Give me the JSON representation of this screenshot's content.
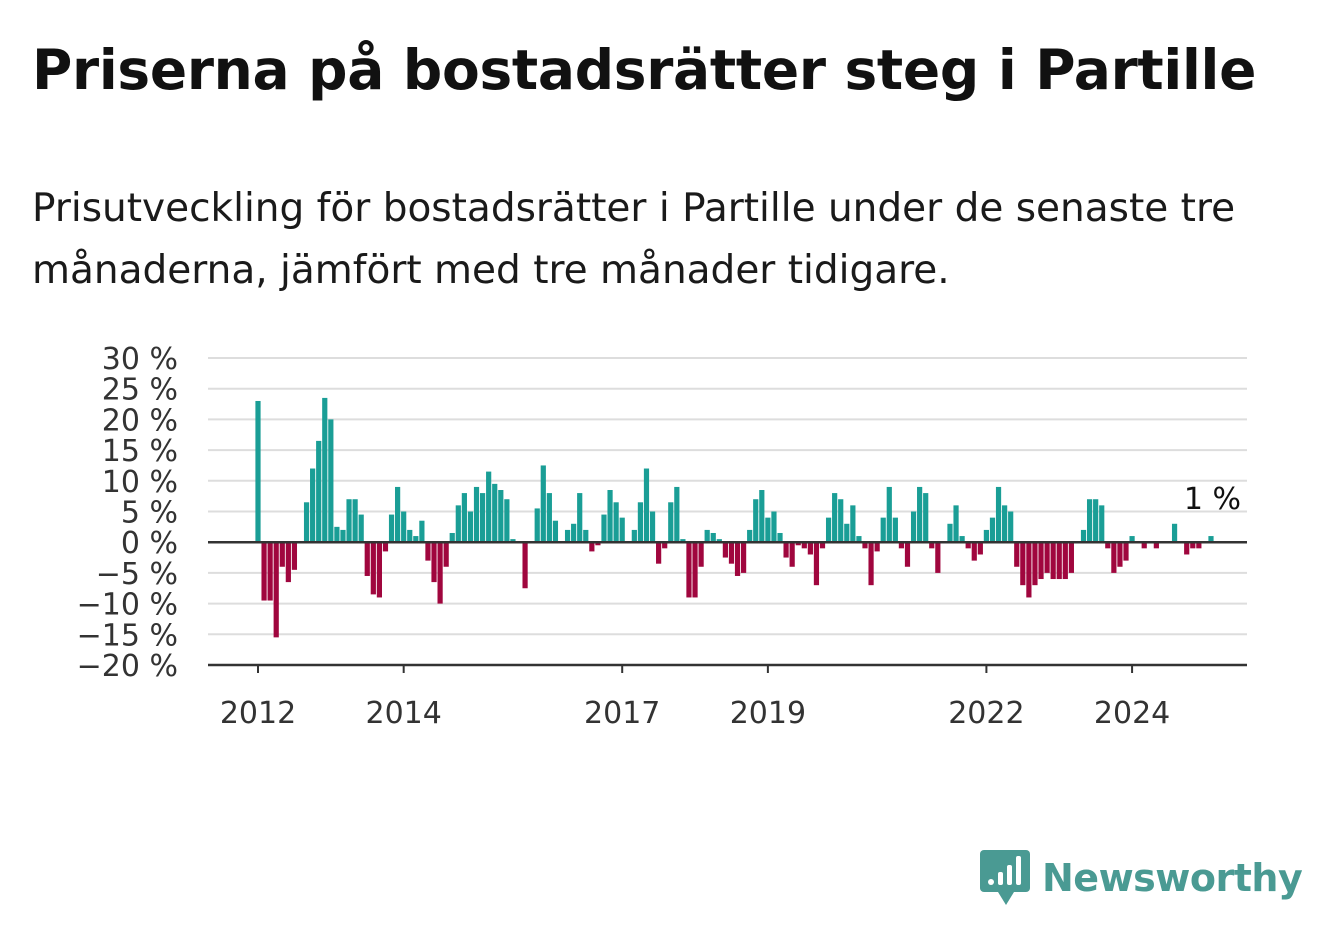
{
  "title": "Priserna på bostadsrätter steg i Partille",
  "subtitle": "Prisutveckling för bostadsrätter i Partille under de senaste tre månaderna, jämfört med tre månader tidigare.",
  "brand": {
    "name": "Newsworthy",
    "icon": "newsworthy-logo-icon",
    "color": "#4a9a93"
  },
  "chart_data": {
    "type": "bar",
    "ylim": [
      -20,
      30
    ],
    "y_ticks": [
      30,
      25,
      20,
      15,
      10,
      5,
      0,
      -5,
      -10,
      -15,
      -20
    ],
    "y_tick_labels": [
      "30 %",
      "25 %",
      "20 %",
      "15 %",
      "10 %",
      "5 %",
      "0 %",
      "−5 %",
      "−10 %",
      "−15 %",
      "−20 %"
    ],
    "x_tick_labels": [
      "2012",
      "2014",
      "2017",
      "2019",
      "2022",
      "2024"
    ],
    "x_tick_months": [
      0,
      24,
      60,
      84,
      120,
      144
    ],
    "colors": {
      "positive": "#1a9e96",
      "negative": "#a0063e",
      "grid": "#dddddd",
      "axis": "#333333"
    },
    "annotation": "1 %",
    "series": [
      {
        "values": [
          23,
          -9.5,
          -9.5,
          -15.5,
          -4,
          -6.5,
          -4.5,
          0,
          6.5,
          12,
          16.5,
          23.5,
          20,
          2.5,
          2,
          7,
          7,
          4.5,
          -5.5,
          -8.5,
          -9,
          -1.5,
          4.5,
          9,
          5,
          2,
          1,
          3.5,
          -3,
          -6.5,
          -10,
          -4,
          1.5,
          6,
          8,
          5,
          9,
          8,
          11.5,
          9.5,
          8.5,
          7,
          0.5,
          0,
          -7.5,
          0,
          5.5,
          12.5,
          8,
          3.5,
          0,
          2,
          3,
          8,
          2,
          -1.5,
          -0.5,
          4.5,
          8.5,
          6.5,
          4,
          0,
          2,
          6.5,
          12,
          5,
          -3.5,
          -1,
          6.5,
          9,
          0.5,
          -9,
          -9,
          -4,
          2,
          1.5,
          0.5,
          -2.5,
          -3.5,
          -5.5,
          -5,
          2,
          7,
          8.5,
          4,
          5,
          1.5,
          -2.5,
          -4,
          -0.5,
          -1,
          -2,
          -7,
          -1,
          4,
          8,
          7,
          3,
          6,
          1,
          -1,
          -7,
          -1.5,
          4,
          9,
          4,
          -1,
          -4,
          5,
          9,
          8,
          -1,
          -5,
          0,
          3,
          6,
          1,
          -1,
          -3,
          -2,
          2,
          4,
          9,
          6,
          5,
          -4,
          -7,
          -9,
          -7,
          -6,
          -5,
          -6,
          -6,
          -6,
          -5,
          0,
          2,
          7,
          7,
          6,
          -1,
          -5,
          -4,
          -3,
          1,
          0,
          -1,
          0,
          -1,
          0,
          0,
          3,
          0,
          -2,
          -1,
          -1,
          0,
          1
        ]
      }
    ]
  }
}
